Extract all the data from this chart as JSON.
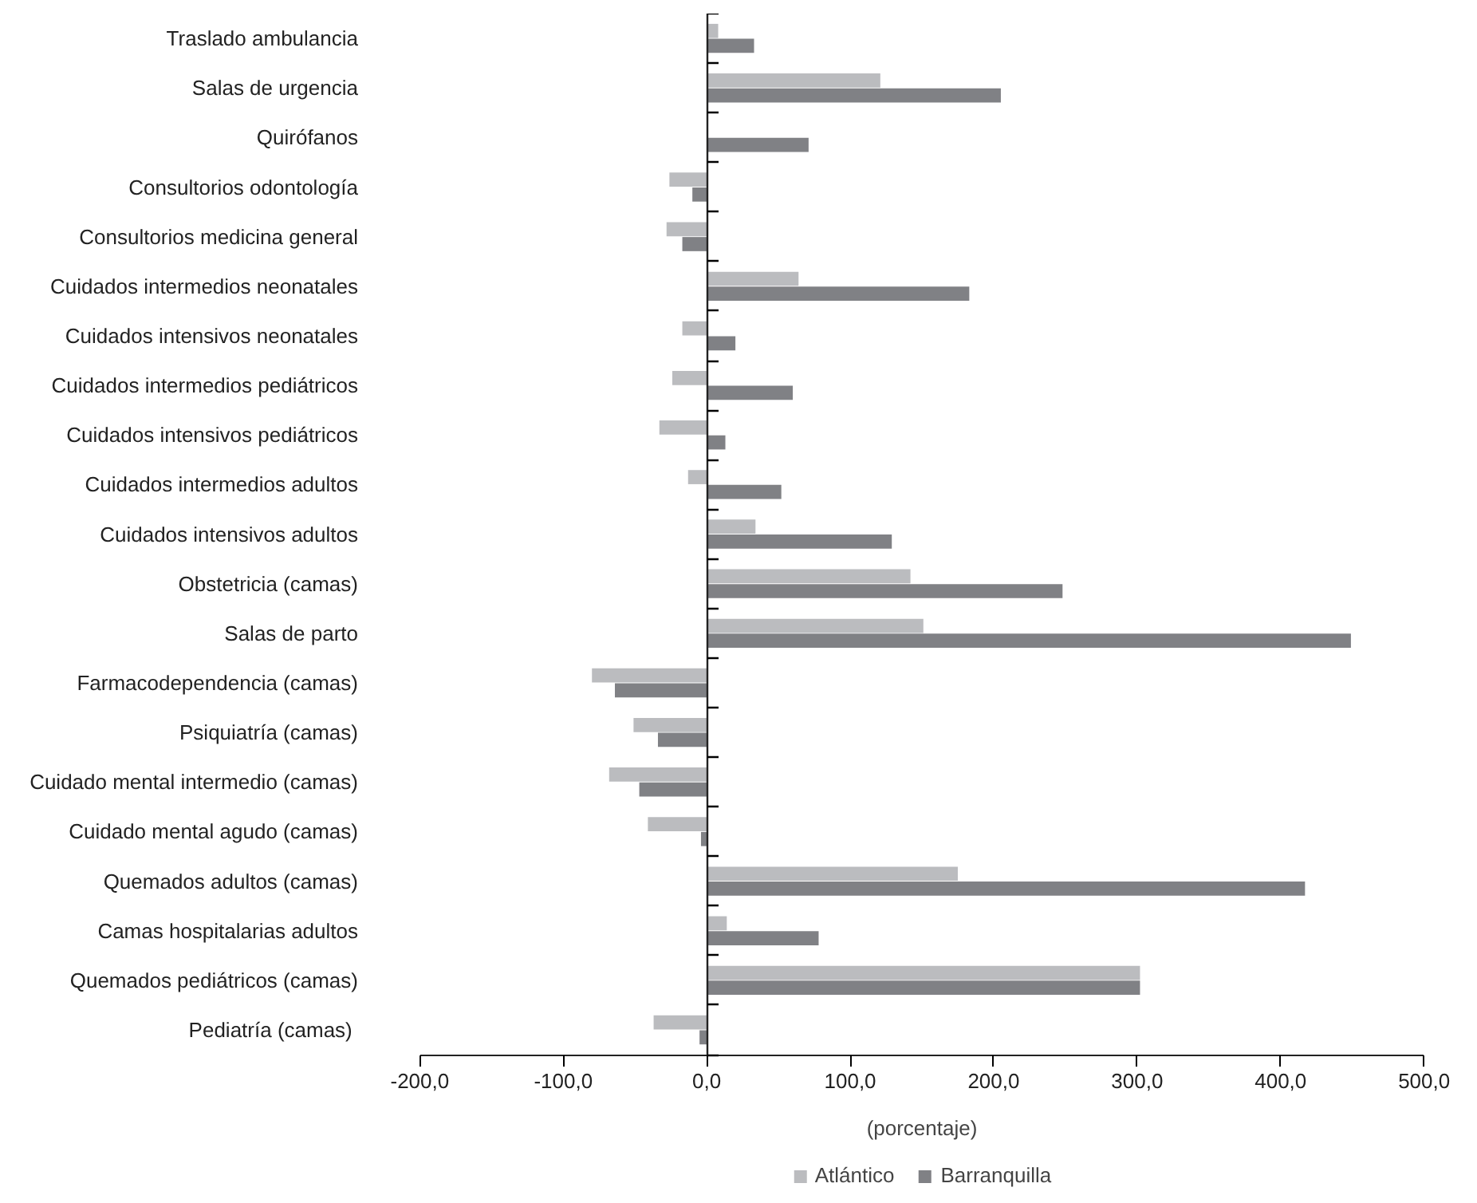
{
  "chart_data": {
    "type": "bar",
    "orientation": "horizontal",
    "xlabel": "(porcentaje)",
    "categories": [
      "Traslado ambulancia",
      "Salas de urgencia",
      "Quirófanos",
      "Consultorios odontología",
      "Consultorios medicina general",
      "Cuidados intermedios neonatales",
      "Cuidados intensivos neonatales",
      "Cuidados intermedios pediátricos",
      "Cuidados intensivos pediátricos",
      "Cuidados intermedios adultos",
      "Cuidados intensivos adultos",
      "Obstetricia (camas)",
      "Salas de parto",
      "Farmacodependencia (camas)",
      "Psiquiatría (camas)",
      "Cuidado mental intermedio (camas)",
      "Cuidado mental agudo (camas)",
      "Quemados adultos (camas)",
      "Camas hospitalarias adultos",
      "Quemados pediátricos (camas)",
      "Pediatría  (camas)"
    ],
    "series": [
      {
        "name": "Atlántico",
        "color": "#bbbcbf",
        "values": [
          8,
          121,
          0,
          -26,
          -28,
          64,
          -17,
          -24,
          -33,
          -13,
          34,
          142,
          151,
          -80,
          -51,
          -68,
          -41,
          175,
          14,
          302,
          -37
        ]
      },
      {
        "name": "Barranquilla",
        "color": "#808185",
        "values": [
          33,
          205,
          71,
          -10,
          -17,
          183,
          20,
          60,
          13,
          52,
          129,
          248,
          449,
          -64,
          -34,
          -47,
          -4,
          417,
          78,
          302,
          -5
        ]
      }
    ],
    "xlim": [
      -200,
      500
    ],
    "xticks": [
      {
        "value": -200,
        "label": "-200,0"
      },
      {
        "value": -100,
        "label": "-100,0"
      },
      {
        "value": 0,
        "label": "0,0"
      },
      {
        "value": 100,
        "label": "100,0"
      },
      {
        "value": 200,
        "label": "200,0"
      },
      {
        "value": 300,
        "label": "300,0"
      },
      {
        "value": 400,
        "label": "400,0"
      },
      {
        "value": 500,
        "label": "500,0"
      }
    ],
    "legend": "bottom"
  }
}
